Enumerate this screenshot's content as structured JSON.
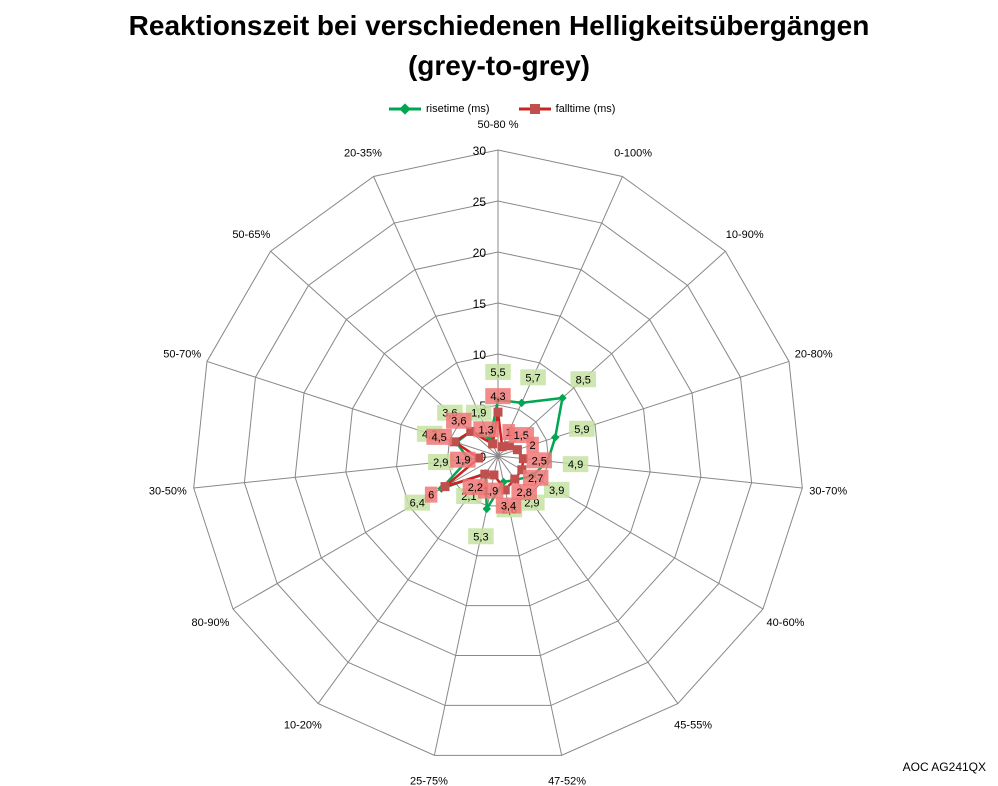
{
  "chart_data": {
    "type": "radar",
    "title_line1": "Reaktionszeit bei verschiedenen Helligkeitsübergängen",
    "title_line2": "(grey-to-grey)",
    "categories": [
      "50-80 %",
      "0-100%",
      "10-90%",
      "20-80%",
      "30-70%",
      "40-60%",
      "45-55%",
      "47-52%",
      "25-75%",
      "10-20%",
      "80-90%",
      "30-50%",
      "50-70%",
      "50-65%",
      "20-35%"
    ],
    "rticks": [
      "0",
      "5",
      "10",
      "15",
      "20",
      "25",
      "30"
    ],
    "rlim": [
      0,
      30
    ],
    "legend_position": "top",
    "series": [
      {
        "name": "risetime (ms)",
        "color": "#00a651",
        "label_bg": "#c6e2a1",
        "marker": "diamond",
        "values": [
          5.5,
          5.7,
          8.5,
          5.9,
          4.9,
          3.9,
          2.9,
          2.6,
          5.3,
          2.1,
          6.4,
          2.9,
          4.3,
          3.6,
          1.9
        ],
        "labels": [
          "5,5",
          "5,7",
          "8,5",
          "5,9",
          "4,9",
          "3,9",
          "2,9",
          "2,6",
          "5,3",
          "2,1",
          "6,4",
          "2,9",
          "4,3",
          "3,6",
          "1,9"
        ]
      },
      {
        "name": "falltime (ms)",
        "color": "#cc2222",
        "marker_color": "#c0504d",
        "label_bg": "#f07878",
        "marker": "square",
        "values": [
          4.3,
          1.0,
          1.5,
          2.0,
          2.5,
          2.7,
          2.8,
          3.4,
          1.9,
          2.2,
          6.0,
          1.9,
          4.5,
          3.6,
          1.3
        ],
        "labels": [
          "4,3",
          "1",
          "1,5",
          "2",
          "2,5",
          "2,7",
          "2,8",
          "3,4",
          "1,9",
          "2,2",
          "6",
          "1,9",
          "4,5",
          "3,6",
          "1,3"
        ]
      }
    ],
    "grid": true,
    "footer": "AOC AG241QX"
  }
}
